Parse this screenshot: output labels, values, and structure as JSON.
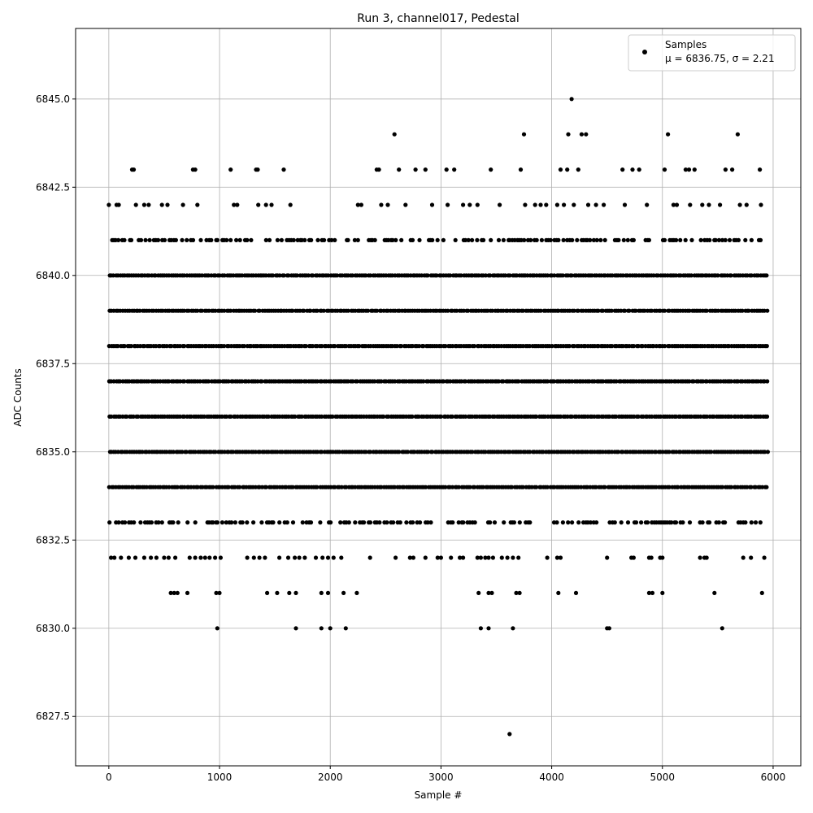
{
  "chart_data": {
    "type": "scatter",
    "title": "Run 3, channel017, Pedestal",
    "xlabel": "Sample #",
    "ylabel": "ADC Counts",
    "xlim": [
      -300,
      6250
    ],
    "ylim": [
      6826.1,
      6847.0
    ],
    "xticks": [
      0,
      1000,
      2000,
      3000,
      4000,
      5000,
      6000
    ],
    "xtick_labels": [
      "0",
      "1000",
      "2000",
      "3000",
      "4000",
      "5000",
      "6000"
    ],
    "yticks": [
      6827.5,
      6830.0,
      6832.5,
      6835.0,
      6837.5,
      6840.0,
      6842.5,
      6845.0
    ],
    "ytick_labels": [
      "6827.5",
      "6830.0",
      "6832.5",
      "6835.0",
      "6837.5",
      "6840.0",
      "6842.5",
      "6845.0"
    ],
    "grid": true,
    "legend_position": "top-right",
    "marker_color": "#000000",
    "series": [
      {
        "name": "Samples",
        "legend_line2": "μ = 6836.75, σ = 2.21",
        "x_range": [
          0,
          5940
        ],
        "dense_levels": [
          6833,
          6834,
          6835,
          6836,
          6837,
          6838,
          6839,
          6840,
          6841
        ],
        "points": [
          [
            0,
            6842
          ],
          [
            70,
            6842
          ],
          [
            90,
            6842
          ],
          [
            210,
            6843
          ],
          [
            225,
            6843
          ],
          [
            245,
            6842
          ],
          [
            320,
            6842
          ],
          [
            360,
            6842
          ],
          [
            480,
            6842
          ],
          [
            530,
            6842
          ],
          [
            670,
            6842
          ],
          [
            760,
            6843
          ],
          [
            780,
            6843
          ],
          [
            800,
            6842
          ],
          [
            1100,
            6843
          ],
          [
            1130,
            6842
          ],
          [
            1160,
            6842
          ],
          [
            1330,
            6843
          ],
          [
            1345,
            6843
          ],
          [
            1350,
            6842
          ],
          [
            1420,
            6842
          ],
          [
            1470,
            6842
          ],
          [
            1580,
            6843
          ],
          [
            1640,
            6842
          ],
          [
            2250,
            6842
          ],
          [
            2280,
            6842
          ],
          [
            2420,
            6843
          ],
          [
            2440,
            6843
          ],
          [
            2460,
            6842
          ],
          [
            2520,
            6842
          ],
          [
            2580,
            6844
          ],
          [
            2620,
            6843
          ],
          [
            2680,
            6842
          ],
          [
            2770,
            6843
          ],
          [
            2860,
            6843
          ],
          [
            2920,
            6842
          ],
          [
            3050,
            6843
          ],
          [
            3060,
            6842
          ],
          [
            3120,
            6843
          ],
          [
            3200,
            6842
          ],
          [
            3260,
            6842
          ],
          [
            3330,
            6842
          ],
          [
            3450,
            6843
          ],
          [
            3530,
            6842
          ],
          [
            3720,
            6843
          ],
          [
            3750,
            6844
          ],
          [
            3760,
            6842
          ],
          [
            3850,
            6842
          ],
          [
            3900,
            6842
          ],
          [
            3950,
            6842
          ],
          [
            4050,
            6842
          ],
          [
            4110,
            6842
          ],
          [
            4080,
            6843
          ],
          [
            4140,
            6843
          ],
          [
            4150,
            6844
          ],
          [
            4180,
            6845
          ],
          [
            4200,
            6842
          ],
          [
            4240,
            6843
          ],
          [
            4270,
            6844
          ],
          [
            4310,
            6844
          ],
          [
            4330,
            6842
          ],
          [
            4400,
            6842
          ],
          [
            4470,
            6842
          ],
          [
            4640,
            6843
          ],
          [
            4660,
            6842
          ],
          [
            4730,
            6843
          ],
          [
            4790,
            6843
          ],
          [
            4860,
            6842
          ],
          [
            5020,
            6843
          ],
          [
            5050,
            6844
          ],
          [
            5100,
            6842
          ],
          [
            5130,
            6842
          ],
          [
            5210,
            6843
          ],
          [
            5240,
            6843
          ],
          [
            5250,
            6842
          ],
          [
            5290,
            6843
          ],
          [
            5360,
            6842
          ],
          [
            5420,
            6842
          ],
          [
            5520,
            6842
          ],
          [
            5570,
            6843
          ],
          [
            5630,
            6843
          ],
          [
            5680,
            6844
          ],
          [
            5700,
            6842
          ],
          [
            5760,
            6842
          ],
          [
            5880,
            6843
          ],
          [
            5890,
            6842
          ],
          [
            20,
            6832
          ],
          [
            50,
            6832
          ],
          [
            110,
            6832
          ],
          [
            180,
            6832
          ],
          [
            240,
            6832
          ],
          [
            320,
            6832
          ],
          [
            380,
            6832
          ],
          [
            430,
            6832
          ],
          [
            500,
            6832
          ],
          [
            540,
            6832
          ],
          [
            600,
            6832
          ],
          [
            730,
            6832
          ],
          [
            780,
            6832
          ],
          [
            830,
            6832
          ],
          [
            870,
            6832
          ],
          [
            910,
            6832
          ],
          [
            960,
            6832
          ],
          [
            1010,
            6832
          ],
          [
            1250,
            6832
          ],
          [
            1310,
            6832
          ],
          [
            1360,
            6832
          ],
          [
            1410,
            6832
          ],
          [
            1540,
            6832
          ],
          [
            1620,
            6832
          ],
          [
            1680,
            6832
          ],
          [
            1720,
            6832
          ],
          [
            1770,
            6832
          ],
          [
            1870,
            6832
          ],
          [
            1930,
            6832
          ],
          [
            1980,
            6832
          ],
          [
            2030,
            6832
          ],
          [
            2100,
            6832
          ],
          [
            2360,
            6832
          ],
          [
            2590,
            6832
          ],
          [
            2720,
            6832
          ],
          [
            2750,
            6832
          ],
          [
            2860,
            6832
          ],
          [
            2970,
            6832
          ],
          [
            3000,
            6832
          ],
          [
            3090,
            6832
          ],
          [
            3170,
            6832
          ],
          [
            3200,
            6832
          ],
          [
            3330,
            6832
          ],
          [
            3360,
            6832
          ],
          [
            3400,
            6832
          ],
          [
            3430,
            6832
          ],
          [
            3470,
            6832
          ],
          [
            3550,
            6832
          ],
          [
            3600,
            6832
          ],
          [
            3650,
            6832
          ],
          [
            3700,
            6832
          ],
          [
            3960,
            6832
          ],
          [
            4050,
            6832
          ],
          [
            4080,
            6832
          ],
          [
            4500,
            6832
          ],
          [
            4720,
            6832
          ],
          [
            4740,
            6832
          ],
          [
            4880,
            6832
          ],
          [
            4900,
            6832
          ],
          [
            4980,
            6832
          ],
          [
            5000,
            6832
          ],
          [
            5340,
            6832
          ],
          [
            5380,
            6832
          ],
          [
            5400,
            6832
          ],
          [
            5730,
            6832
          ],
          [
            5800,
            6832
          ],
          [
            5920,
            6832
          ],
          [
            560,
            6831
          ],
          [
            590,
            6831
          ],
          [
            620,
            6831
          ],
          [
            710,
            6831
          ],
          [
            970,
            6831
          ],
          [
            1000,
            6831
          ],
          [
            1430,
            6831
          ],
          [
            1520,
            6831
          ],
          [
            1630,
            6831
          ],
          [
            1690,
            6831
          ],
          [
            1920,
            6831
          ],
          [
            1980,
            6831
          ],
          [
            2120,
            6831
          ],
          [
            2240,
            6831
          ],
          [
            3340,
            6831
          ],
          [
            3430,
            6831
          ],
          [
            3460,
            6831
          ],
          [
            3680,
            6831
          ],
          [
            3710,
            6831
          ],
          [
            4060,
            6831
          ],
          [
            4220,
            6831
          ],
          [
            4880,
            6831
          ],
          [
            4910,
            6831
          ],
          [
            5000,
            6831
          ],
          [
            5470,
            6831
          ],
          [
            5900,
            6831
          ],
          [
            980,
            6830
          ],
          [
            1690,
            6830
          ],
          [
            1920,
            6830
          ],
          [
            2000,
            6830
          ],
          [
            2140,
            6830
          ],
          [
            3360,
            6830
          ],
          [
            3430,
            6830
          ],
          [
            3650,
            6830
          ],
          [
            4500,
            6830
          ],
          [
            4520,
            6830
          ],
          [
            5540,
            6830
          ],
          [
            3620,
            6827
          ]
        ]
      }
    ]
  }
}
